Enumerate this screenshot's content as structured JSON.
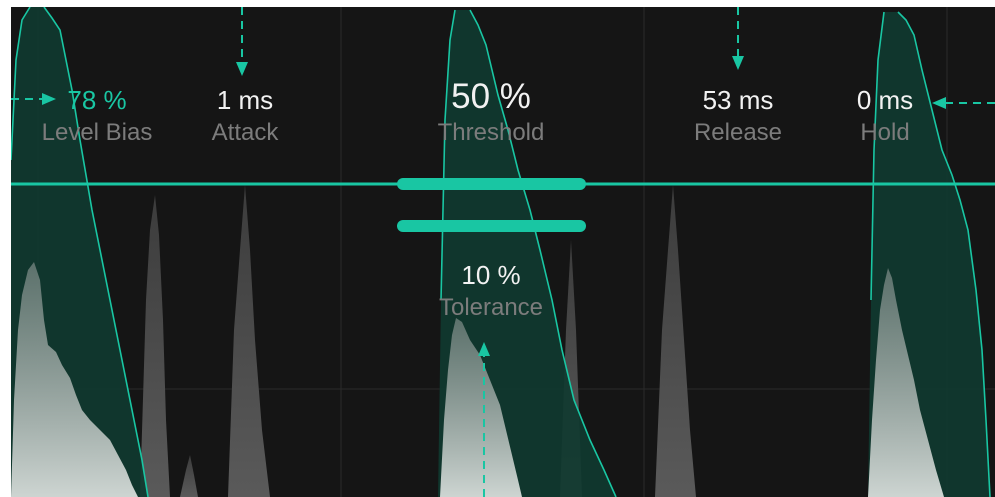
{
  "params": {
    "level_bias": {
      "value": "78 %",
      "label": "Level Bias"
    },
    "attack": {
      "value": "1 ms",
      "label": "Attack"
    },
    "threshold": {
      "value": "50 %",
      "label": "Threshold"
    },
    "release": {
      "value": "53 ms",
      "label": "Release"
    },
    "hold": {
      "value": "0 ms",
      "label": "Hold"
    },
    "tolerance": {
      "value": "10 %",
      "label": "Tolerance"
    }
  },
  "colors": {
    "accent": "#19c6a3",
    "background": "#151515",
    "value_text": "#f2f2f2",
    "label_text": "#7c7c7c",
    "grid": "#2a2a2a",
    "envelope_fill": "#103a30",
    "waveform_light": "#c9cfcd",
    "waveform_dark": "#3a3a3a"
  }
}
